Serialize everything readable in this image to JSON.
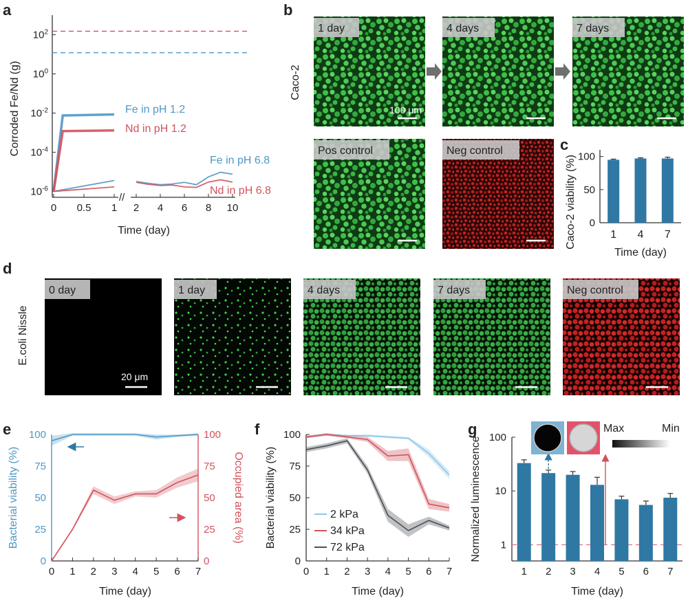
{
  "panel_labels": {
    "a": "a",
    "b": "b",
    "c": "c",
    "d": "d",
    "e": "e",
    "f": "f",
    "g": "g"
  },
  "colors": {
    "blue": "#4f97c6",
    "red": "#d1525c",
    "dark": "#4a4f55",
    "lightblue": "#8ec6ea",
    "bar": "#2f78a3",
    "grid_red": "#e07c83"
  },
  "images_b": {
    "side_label": "Caco-2",
    "scale_label": "100 μm",
    "tiles": [
      {
        "label": "1 day",
        "kind": "green"
      },
      {
        "label": "4 days",
        "kind": "green"
      },
      {
        "label": "7 days",
        "kind": "green"
      },
      {
        "label": "Pos control",
        "kind": "green"
      },
      {
        "label": "Neg control",
        "kind": "red"
      }
    ]
  },
  "images_d": {
    "side_label": "E.coli Nissle",
    "scale_label": "20 μm",
    "tiles": [
      {
        "label": "0 day",
        "kind": "black"
      },
      {
        "label": "1 day",
        "kind": "sparse"
      },
      {
        "label": "4 days",
        "kind": "dense"
      },
      {
        "label": "7 days",
        "kind": "dense"
      },
      {
        "label": "Neg control",
        "kind": "reddense"
      }
    ]
  },
  "inset_g": {
    "max_label": "Max",
    "min_label": "Min"
  },
  "chart_data": [
    {
      "panel": "a",
      "type": "line",
      "xlabel": "Time (day)",
      "ylabel": "Corroded Fe/Nd (g)",
      "yscale": "log",
      "ylim": [
        5e-07,
        1000
      ],
      "yticks": [
        "10-6",
        "10-4",
        "10-2",
        "100",
        "102"
      ],
      "xticks_left": [
        "0",
        "0.5",
        "1"
      ],
      "xticks_right": [
        "2",
        "4",
        "6",
        "8",
        "10"
      ],
      "x_axis_break": true,
      "reference_lines": [
        {
          "color": "red",
          "y": 150
        },
        {
          "color": "blue",
          "y": 12
        }
      ],
      "series": [
        {
          "name": "Fe in pH 1.2",
          "color": "blue",
          "x": [
            0,
            0.15,
            1
          ],
          "y": [
            1e-06,
            0.0075,
            0.0085
          ]
        },
        {
          "name": "Nd in pH 1.2",
          "color": "red",
          "x": [
            0,
            0.15,
            1
          ],
          "y": [
            1e-06,
            0.0012,
            0.0013
          ]
        },
        {
          "name": "Fe in pH 6.8",
          "color": "blue",
          "x": [
            0,
            1,
            2,
            3,
            4,
            5,
            6,
            7,
            8,
            9,
            10
          ],
          "y": [
            1e-06,
            3.6e-06,
            3.2e-06,
            2.6e-06,
            2.2e-06,
            2.4e-06,
            2.9e-06,
            2.2e-06,
            5.5e-06,
            9.5e-06,
            7.6e-06
          ]
        },
        {
          "name": "Nd in pH 6.8",
          "color": "red",
          "x": [
            0,
            1,
            2,
            3,
            4,
            5,
            6,
            7,
            8,
            9,
            10
          ],
          "y": [
            1e-06,
            1.7e-06,
            2.9e-06,
            2.3e-06,
            2e-06,
            2.1e-06,
            1.7e-06,
            1.6e-06,
            3e-06,
            3.9e-06,
            3e-06
          ]
        }
      ]
    },
    {
      "panel": "c",
      "type": "bar",
      "xlabel": "Time (day)",
      "ylabel": "Caco-2 viability (%)",
      "categories": [
        "1",
        "4",
        "7"
      ],
      "values": [
        95,
        97,
        97
      ],
      "errors": [
        1,
        1,
        2
      ],
      "ylim": [
        0,
        110
      ],
      "yticks": [
        "0",
        "50",
        "100"
      ]
    },
    {
      "panel": "e",
      "type": "line",
      "xlabel": "Time (day)",
      "ylabel": "Bacterial viability (%)",
      "y2label": "Occupied area (%)",
      "x": [
        0,
        1,
        2,
        3,
        4,
        5,
        6,
        7
      ],
      "xticks": [
        "0",
        "1",
        "2",
        "3",
        "4",
        "5",
        "6",
        "7"
      ],
      "yticks": [
        "0",
        "25",
        "50",
        "75",
        "100"
      ],
      "ylim": [
        0,
        100
      ],
      "series": [
        {
          "axis": "left",
          "color": "blue",
          "values": [
            95,
            100,
            100,
            100,
            100,
            98,
            99,
            100
          ],
          "band": [
            4,
            1,
            1,
            1,
            1,
            2,
            1,
            1
          ]
        },
        {
          "axis": "right",
          "color": "red",
          "values": [
            0,
            25,
            56,
            48,
            53,
            53,
            62,
            68
          ],
          "band": [
            0,
            1,
            3,
            3,
            2,
            3,
            4,
            5
          ]
        }
      ]
    },
    {
      "panel": "f",
      "type": "line",
      "xlabel": "Time (day)",
      "ylabel": "Bacterial viability (%)",
      "x": [
        0,
        1,
        2,
        3,
        4,
        5,
        6,
        7
      ],
      "xticks": [
        "0",
        "1",
        "2",
        "3",
        "4",
        "5",
        "6",
        "7"
      ],
      "yticks": [
        "0",
        "25",
        "50",
        "75",
        "100"
      ],
      "ylim": [
        0,
        100
      ],
      "series": [
        {
          "name": "2 kPa",
          "color": "lightblue",
          "values": [
            98,
            100,
            99,
            99,
            98,
            97,
            85,
            68
          ],
          "band": [
            1,
            1,
            1,
            1,
            1,
            1,
            3,
            3
          ]
        },
        {
          "name": "34 kPa",
          "color": "red",
          "values": [
            98,
            100,
            98,
            96,
            83,
            84,
            45,
            42
          ],
          "band": [
            1,
            1,
            1,
            2,
            4,
            5,
            4,
            3
          ]
        },
        {
          "name": "72 kPa",
          "color": "dark",
          "values": [
            88,
            91,
            95,
            72,
            36,
            24,
            32,
            26
          ],
          "band": [
            2,
            2,
            2,
            3,
            5,
            5,
            3,
            2
          ]
        }
      ]
    },
    {
      "panel": "g",
      "type": "bar",
      "xlabel": "Time (day)",
      "ylabel": "Normalized luminescence",
      "yscale": "log",
      "categories": [
        "1",
        "2",
        "3",
        "4",
        "5",
        "6",
        "7"
      ],
      "values": [
        33,
        21.5,
        20,
        13,
        7,
        5.5,
        7.5
      ],
      "errors": [
        5,
        3,
        3,
        5,
        1,
        1,
        1.5
      ],
      "ylim": [
        0.5,
        100
      ],
      "yticks": [
        "1",
        "10",
        "100"
      ],
      "reference_line": 1
    }
  ]
}
